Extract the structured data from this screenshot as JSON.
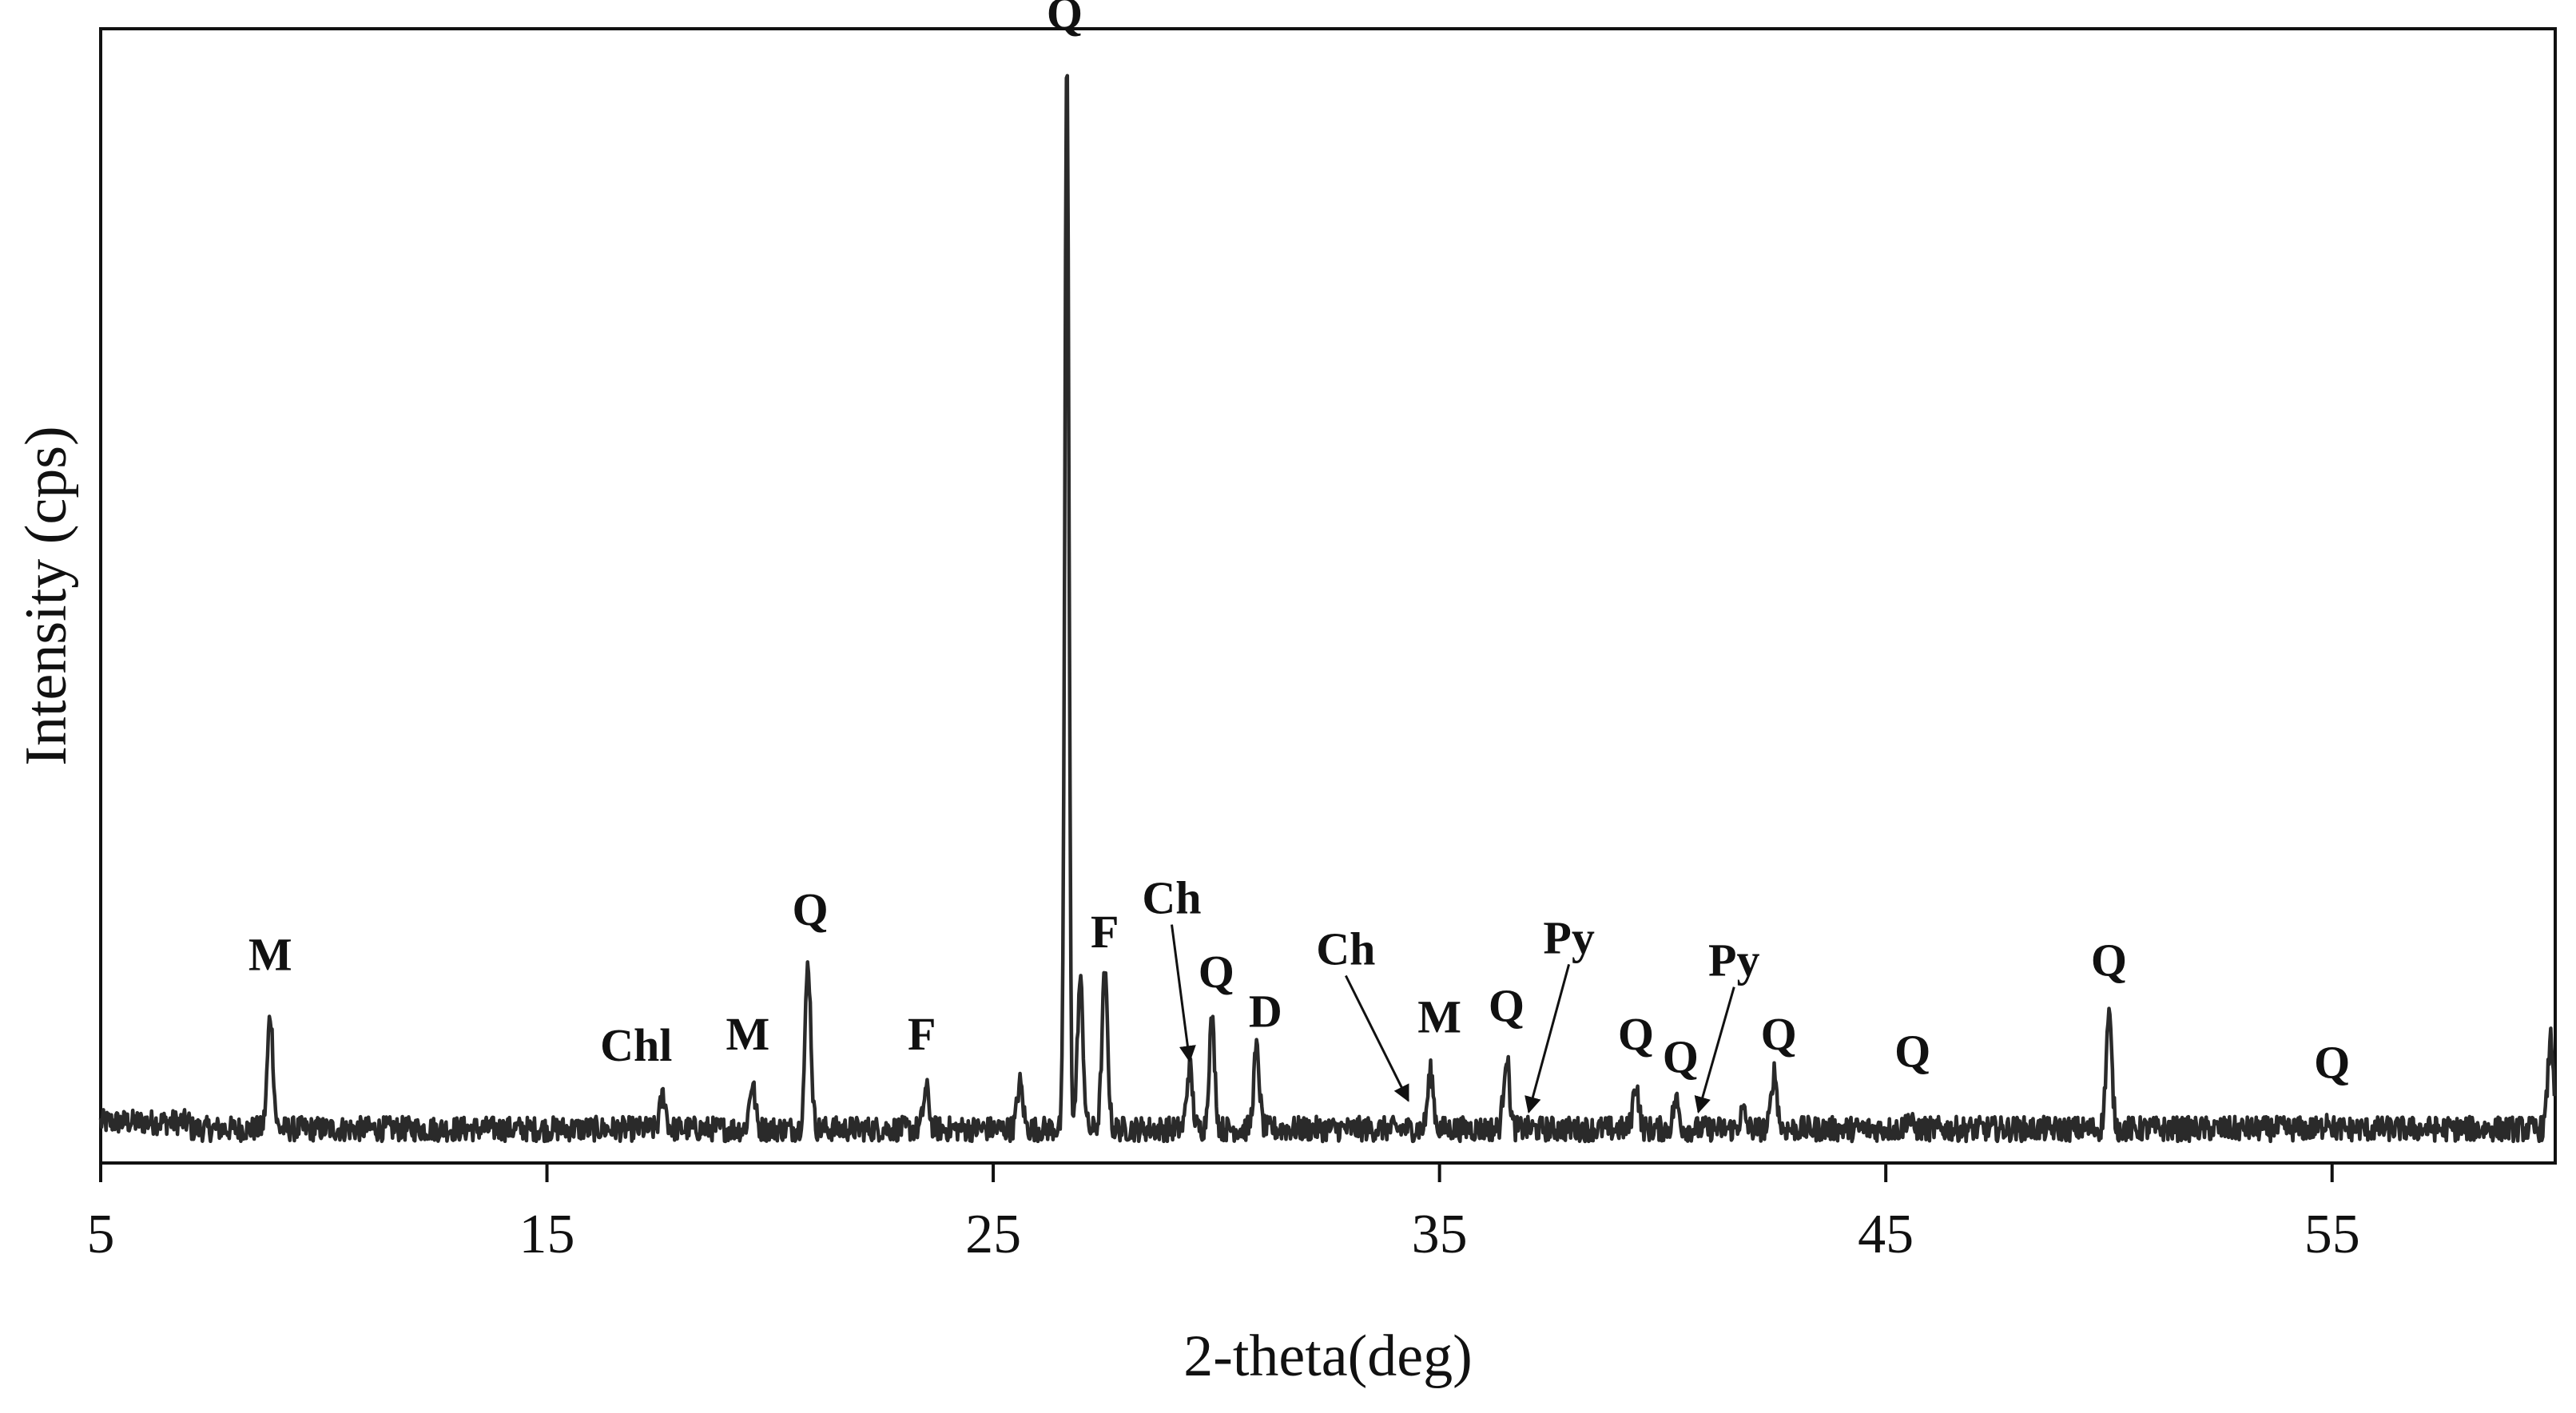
{
  "chart_data": {
    "type": "line",
    "title": "",
    "xlabel": "2-theta(deg)",
    "ylabel": "Intensity (cps)",
    "xlim": [
      5,
      60
    ],
    "ylim": [
      0,
      1
    ],
    "x_ticks": [
      5,
      15,
      25,
      35,
      45,
      55
    ],
    "y_ticks_shown": false,
    "grid": false,
    "line_color": "#2a2a2a",
    "baseline": 0.03,
    "peaks": [
      {
        "x": 8.8,
        "y": 0.13
      },
      {
        "x": 17.6,
        "y": 0.06
      },
      {
        "x": 19.6,
        "y": 0.07
      },
      {
        "x": 20.85,
        "y": 0.175
      },
      {
        "x": 23.5,
        "y": 0.065
      },
      {
        "x": 25.6,
        "y": 0.07
      },
      {
        "x": 26.65,
        "y": 0.98
      },
      {
        "x": 26.95,
        "y": 0.16
      },
      {
        "x": 27.5,
        "y": 0.165
      },
      {
        "x": 29.4,
        "y": 0.085
      },
      {
        "x": 29.9,
        "y": 0.125
      },
      {
        "x": 30.9,
        "y": 0.1
      },
      {
        "x": 34.8,
        "y": 0.08
      },
      {
        "x": 36.5,
        "y": 0.095
      },
      {
        "x": 39.4,
        "y": 0.07
      },
      {
        "x": 40.3,
        "y": 0.055
      },
      {
        "x": 41.8,
        "y": 0.045
      },
      {
        "x": 42.5,
        "y": 0.08
      },
      {
        "x": 45.5,
        "y": 0.04
      },
      {
        "x": 50.0,
        "y": 0.13
      },
      {
        "x": 54.9,
        "y": 0.04
      },
      {
        "x": 59.9,
        "y": 0.11
      }
    ],
    "annotations": [
      {
        "text": "M",
        "x": 8.8,
        "y": 0.17,
        "arrow": false
      },
      {
        "text": "Chl",
        "x": 17.0,
        "y": 0.09,
        "arrow": false
      },
      {
        "text": "M",
        "x": 19.5,
        "y": 0.1,
        "arrow": false
      },
      {
        "text": "Q",
        "x": 20.9,
        "y": 0.21,
        "arrow": false
      },
      {
        "text": "F",
        "x": 23.4,
        "y": 0.1,
        "arrow": false
      },
      {
        "text": "Q",
        "x": 26.6,
        "y": 1.0,
        "arrow": false
      },
      {
        "text": "F",
        "x": 27.5,
        "y": 0.19,
        "arrow": false
      },
      {
        "text": "Ch",
        "x": 29.0,
        "y": 0.22,
        "arrow": true,
        "target_x": 29.4,
        "target_y": 0.09
      },
      {
        "text": "Q",
        "x": 30.0,
        "y": 0.155,
        "arrow": false
      },
      {
        "text": "D",
        "x": 31.1,
        "y": 0.12,
        "arrow": false
      },
      {
        "text": "Ch",
        "x": 32.9,
        "y": 0.175,
        "arrow": true,
        "target_x": 34.3,
        "target_y": 0.055
      },
      {
        "text": "M",
        "x": 35.0,
        "y": 0.115,
        "arrow": false
      },
      {
        "text": "Q",
        "x": 36.5,
        "y": 0.125,
        "arrow": false
      },
      {
        "text": "Py",
        "x": 37.9,
        "y": 0.185,
        "arrow": true,
        "target_x": 37.0,
        "target_y": 0.045
      },
      {
        "text": "Q",
        "x": 39.4,
        "y": 0.1,
        "arrow": false
      },
      {
        "text": "Q",
        "x": 40.4,
        "y": 0.08,
        "arrow": false
      },
      {
        "text": "Py",
        "x": 41.6,
        "y": 0.165,
        "arrow": true,
        "target_x": 40.8,
        "target_y": 0.045
      },
      {
        "text": "Q",
        "x": 42.6,
        "y": 0.1,
        "arrow": false
      },
      {
        "text": "Q",
        "x": 45.6,
        "y": 0.085,
        "arrow": false
      },
      {
        "text": "Q",
        "x": 50.0,
        "y": 0.165,
        "arrow": false
      },
      {
        "text": "Q",
        "x": 55.0,
        "y": 0.075,
        "arrow": false
      }
    ]
  }
}
